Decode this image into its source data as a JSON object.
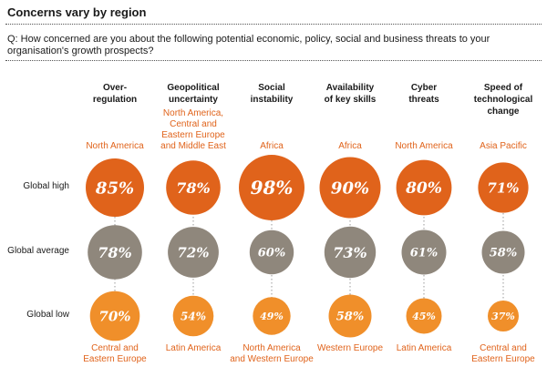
{
  "title": "Concerns vary by region",
  "question": "Q: How concerned are you about the following potential economic, policy, social and business threats to your organisation's growth prospects?",
  "colors": {
    "high": "#e0631b",
    "average": "#8f877c",
    "low": "#f08f2a",
    "region_text": "#e0631b"
  },
  "chart_data": {
    "type": "bubble-comparison",
    "title": "Concerns vary by region",
    "rows": [
      "Global high",
      "Global average",
      "Global low"
    ],
    "categories": [
      "Over-regulation",
      "Geopolitical uncertainty",
      "Social instability",
      "Availability of key skills",
      "Cyber threats",
      "Speed of technological change"
    ],
    "series": [
      {
        "name": "Global high",
        "values": [
          85,
          78,
          98,
          90,
          80,
          71
        ],
        "labels": [
          "85%",
          "78%",
          "98%",
          "90%",
          "80%",
          "71%"
        ],
        "regions": [
          "North America",
          "North America, Central and Eastern Europe and Middle East",
          "Africa",
          "Africa",
          "North America",
          "Asia Pacific"
        ]
      },
      {
        "name": "Global average",
        "values": [
          78,
          72,
          60,
          73,
          61,
          58
        ],
        "labels": [
          "78%",
          "72%",
          "60%",
          "73%",
          "61%",
          "58%"
        ]
      },
      {
        "name": "Global low",
        "values": [
          70,
          54,
          49,
          58,
          45,
          37
        ],
        "labels": [
          "70%",
          "54%",
          "49%",
          "58%",
          "45%",
          "37%"
        ],
        "regions": [
          "Central and Eastern Europe",
          "Latin America",
          "North America and Western Europe",
          "Western Europe",
          "Latin America",
          "Central and Eastern Europe"
        ]
      }
    ],
    "columns": [
      {
        "header_lines": [
          "Over-",
          "regulation"
        ],
        "high_region_lines": [
          "North America"
        ],
        "low_region_lines": [
          "Central and",
          "Eastern Europe"
        ]
      },
      {
        "header_lines": [
          "Geopolitical",
          "uncertainty"
        ],
        "high_region_lines": [
          "North America,",
          "Central and",
          "Eastern Europe",
          "and Middle East"
        ],
        "low_region_lines": [
          "Latin America"
        ]
      },
      {
        "header_lines": [
          "Social",
          "instability"
        ],
        "high_region_lines": [
          "Africa"
        ],
        "low_region_lines": [
          "North America",
          "and Western Europe"
        ]
      },
      {
        "header_lines": [
          "Availability",
          "of key skills"
        ],
        "high_region_lines": [
          "Africa"
        ],
        "low_region_lines": [
          "Western Europe"
        ]
      },
      {
        "header_lines": [
          "Cyber",
          "threats"
        ],
        "high_region_lines": [
          "North America"
        ],
        "low_region_lines": [
          "Latin America"
        ]
      },
      {
        "header_lines": [
          "Speed of",
          "technological",
          "change"
        ],
        "high_region_lines": [
          "Asia Pacific"
        ],
        "low_region_lines": [
          "Central and",
          "Eastern Europe"
        ]
      }
    ]
  }
}
